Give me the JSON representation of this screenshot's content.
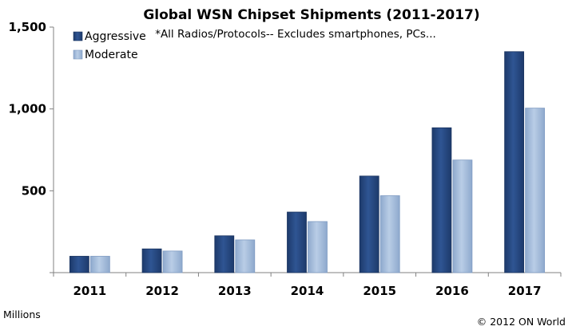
{
  "chart_data": {
    "type": "bar",
    "title": "Global WSN Chipset Shipments (2011-2017)",
    "subtitle": "*All Radios/Protocols-- Excludes smartphones, PCs...",
    "ylabel": "Millions",
    "xlabel": "",
    "ylim": [
      0,
      1500
    ],
    "yticks": [
      500,
      1000,
      1500
    ],
    "ytick_labels": [
      "500",
      "1,000",
      "1,500"
    ],
    "categories": [
      "2011",
      "2012",
      "2013",
      "2014",
      "2015",
      "2016",
      "2017"
    ],
    "series": [
      {
        "name": "Aggressive",
        "color": "#2b4d86",
        "values": [
          100,
          145,
          225,
          370,
          590,
          885,
          1350
        ]
      },
      {
        "name": "Moderate",
        "color": "#a3bcd9",
        "values": [
          100,
          132,
          200,
          312,
          470,
          688,
          1005
        ]
      }
    ],
    "legend_position": "top-left",
    "grid": false,
    "source": "© 2012 ON World"
  }
}
